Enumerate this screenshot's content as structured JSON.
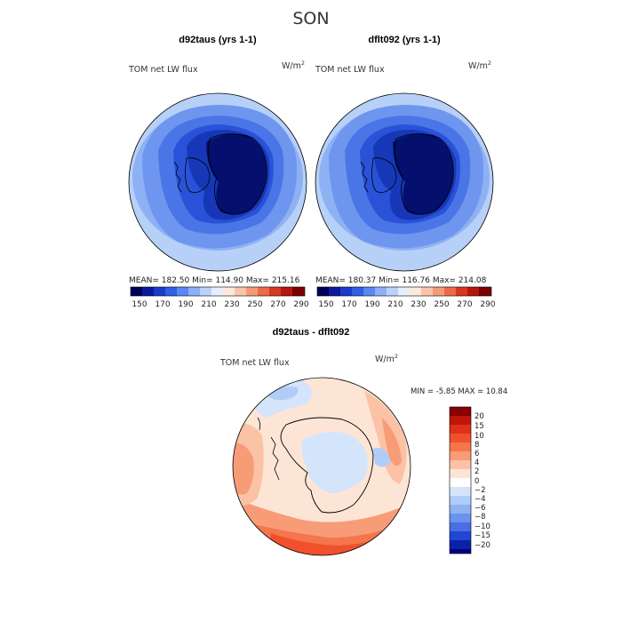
{
  "season": "SON",
  "panels": [
    {
      "title": "d92taus (yrs 1-1)",
      "variable": "TOM net LW flux",
      "units": "W/m",
      "units_exp": "2",
      "stats": "MEAN= 182.50   Min= 114.90   Max= 215.16"
    },
    {
      "title": "dflt092 (yrs 1-1)",
      "variable": "TOM net LW flux",
      "units": "W/m",
      "units_exp": "2",
      "stats": "MEAN= 180.37   Min= 116.76   Max= 214.08"
    }
  ],
  "diff_panel": {
    "title": "d92taus - dflt092",
    "variable": "TOM net LW flux",
    "units": "W/m",
    "units_exp": "2",
    "stats": "MIN =   -5.85  MAX =   10.84"
  },
  "chart_data": [
    {
      "type": "heatmap",
      "projection": "south polar stereographic",
      "title": "d92taus (yrs 1-1)",
      "variable": "TOM net LW flux",
      "units": "W/m^2",
      "mean": 182.5,
      "min": 114.9,
      "max": 215.16,
      "colorbar_levels": [
        150,
        170,
        190,
        210,
        230,
        250,
        270,
        290
      ],
      "colorbar_labels": [
        "150",
        "170",
        "190",
        "210",
        "230",
        "250",
        "270",
        "290"
      ],
      "colors": [
        "#00005a",
        "#0a1a9c",
        "#1a3ccc",
        "#2f60e6",
        "#5a87f0",
        "#8cb0f7",
        "#b9d1fb",
        "#e6eefc",
        "#fde8dc",
        "#f9c4a8",
        "#f59a76",
        "#ec6a48",
        "#d9381e",
        "#b51610",
        "#7d0000"
      ]
    },
    {
      "type": "heatmap",
      "projection": "south polar stereographic",
      "title": "dflt092 (yrs 1-1)",
      "variable": "TOM net LW flux",
      "units": "W/m^2",
      "mean": 180.37,
      "min": 116.76,
      "max": 214.08,
      "colorbar_levels": [
        150,
        170,
        190,
        210,
        230,
        250,
        270,
        290
      ],
      "colorbar_labels": [
        "150",
        "170",
        "190",
        "210",
        "230",
        "250",
        "270",
        "290"
      ]
    },
    {
      "type": "heatmap",
      "projection": "south polar stereographic",
      "title": "d92taus - dflt092",
      "variable": "TOM net LW flux",
      "units": "W/m^2",
      "min": -5.85,
      "max": 10.84,
      "colorbar_levels": [
        -20,
        -15,
        -10,
        -8,
        -6,
        -4,
        -2,
        0,
        2,
        4,
        6,
        8,
        10,
        15,
        20
      ],
      "colorbar_labels": [
        "20",
        "15",
        "10",
        "8",
        "6",
        "4",
        "2",
        "0",
        "−2",
        "−4",
        "−6",
        "−8",
        "−10",
        "−15",
        "−20"
      ],
      "colors": [
        "#8b0000",
        "#c0150b",
        "#e0301c",
        "#f0512c",
        "#f5764c",
        "#f89c78",
        "#fbc2a5",
        "#fde5d6",
        "#ffffff",
        "#d4e4fb",
        "#b0cdf8",
        "#8fb2f3",
        "#6b92ec",
        "#4a6fe3",
        "#2046d2",
        "#0a22a8",
        "#000080"
      ]
    }
  ]
}
